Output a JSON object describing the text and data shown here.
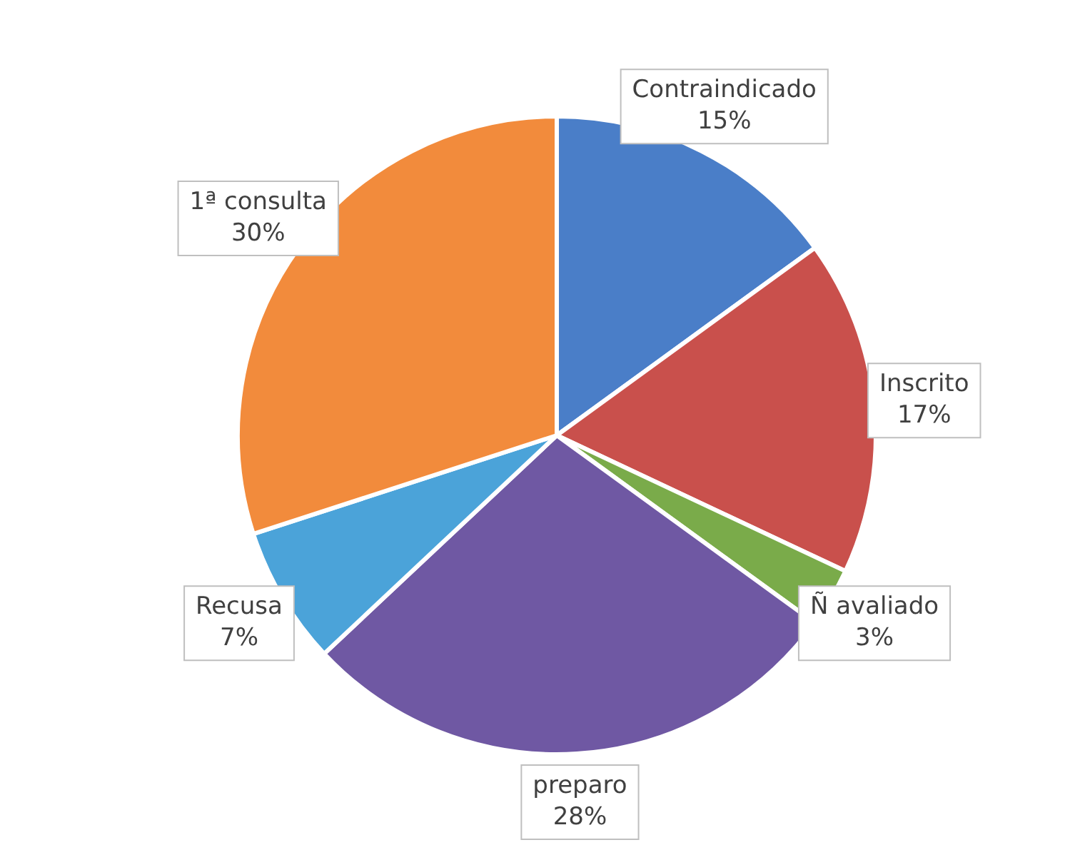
{
  "chart_data": {
    "type": "pie",
    "categories": [
      "Contraindicado",
      "Inscrito",
      "Ñ avaliado",
      "preparo",
      "Recusa",
      "1ª consulta"
    ],
    "values": [
      15,
      17,
      3,
      28,
      7,
      30
    ],
    "colors": [
      "#4a7ec8",
      "#c9504c",
      "#7aab4a",
      "#6f58a3",
      "#4ba3d9",
      "#f28b3c"
    ],
    "value_labels": [
      "15%",
      "17%",
      "3%",
      "28%",
      "7%",
      "30%"
    ],
    "legend": false
  }
}
